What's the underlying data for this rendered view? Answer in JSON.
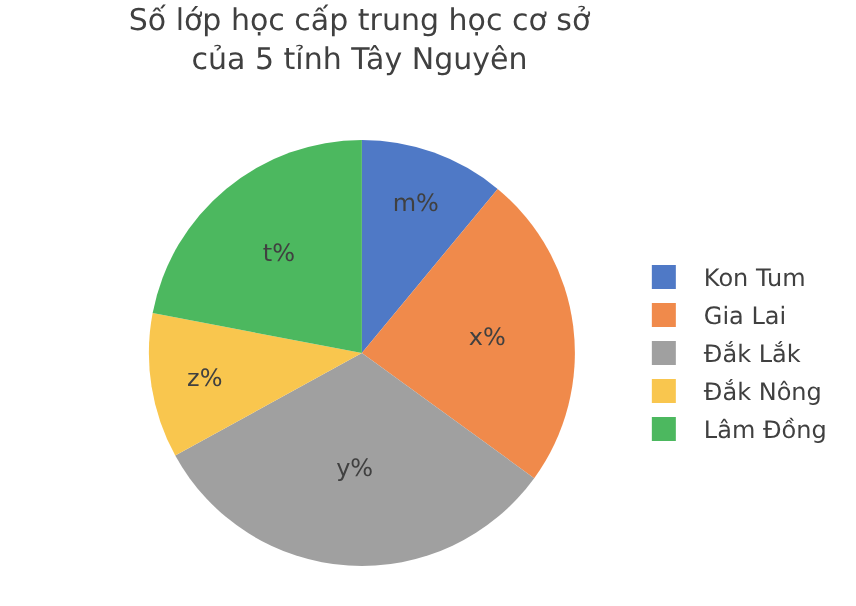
{
  "chart_data": {
    "type": "pie",
    "title": "Số lớp học cấp trung học cơ sở\ncủa 5 tỉnh Tây Nguyên",
    "categories": [
      "Kon Tum",
      "Gia Lai",
      "Đắk Lắk",
      "Đắk Nông",
      "Lâm Đồng"
    ],
    "values": [
      11,
      24,
      32,
      11,
      22
    ],
    "value_labels": [
      "m%",
      "x%",
      "y%",
      "z%",
      "t%"
    ],
    "colors": [
      "#4f79c6",
      "#f08a4b",
      "#a0a0a0",
      "#f9c64e",
      "#4cb85f"
    ],
    "legend": "right"
  }
}
